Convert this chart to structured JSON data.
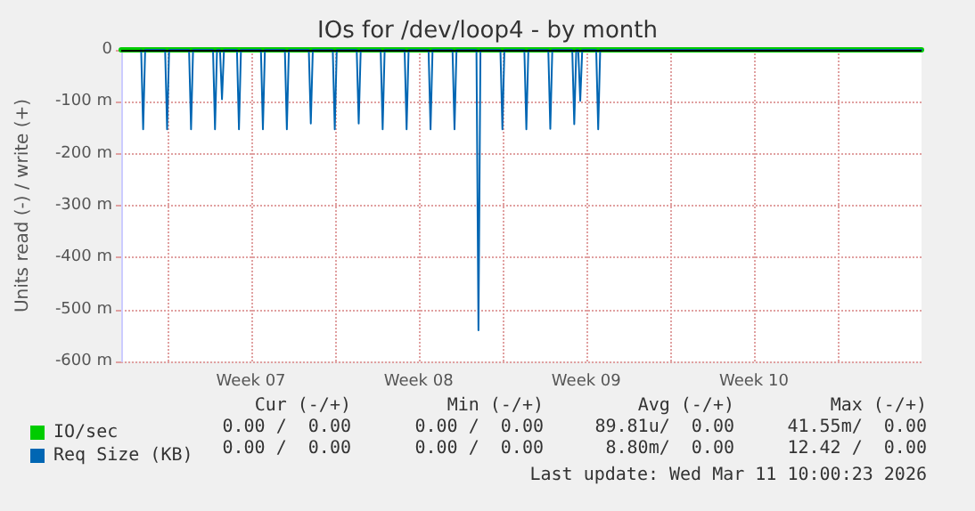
{
  "chart_data": {
    "type": "line",
    "title": "IOs for /dev/loop4 - by month",
    "ylabel": "Units read (-) / write (+)",
    "xlim": [
      "2026-02-07T02:00",
      "2026-03-12T12:00"
    ],
    "xticks": [
      {
        "value": "2026-02-09",
        "label": null
      },
      {
        "value": "2026-02-12T12:00",
        "label": "Week 07"
      },
      {
        "value": "2026-02-16",
        "label": null
      },
      {
        "value": "2026-02-19T12:00",
        "label": "Week 08"
      },
      {
        "value": "2026-02-23",
        "label": null
      },
      {
        "value": "2026-02-26T12:00",
        "label": "Week 09"
      },
      {
        "value": "2026-03-02",
        "label": null
      },
      {
        "value": "2026-03-05T12:00",
        "label": "Week 10"
      },
      {
        "value": "2026-03-09",
        "label": null
      }
    ],
    "ylim": [
      -600,
      0
    ],
    "yticks": [
      0,
      {
        "value": -100,
        "label": "-100 m"
      },
      {
        "value": -200,
        "label": "-200 m"
      },
      {
        "value": -300,
        "label": "-300 m"
      },
      {
        "value": -400,
        "label": "-400 m"
      },
      {
        "value": -500,
        "label": "-500 m"
      },
      {
        "value": -600,
        "label": "-600 m"
      }
    ],
    "grid": true,
    "legend": "bottom left",
    "ref_lines": [
      {
        "axis": "y",
        "value": 0,
        "label": null,
        "color": "#000000"
      }
    ],
    "series": [
      {
        "name": "IO/sec",
        "color": "#00cc00",
        "x": [
          "2026-02-07T02:00",
          "2026-03-12T12:00"
        ],
        "values": [
          0,
          0
        ]
      },
      {
        "name": "Req Size (KB)",
        "color": "#0066b3",
        "x": [
          "2026-02-07T22:00",
          "2026-02-08",
          "2026-02-08T02:00",
          "2026-02-08T22:00",
          "2026-02-09",
          "2026-02-09T02:00",
          "2026-02-09T22:00",
          "2026-02-10",
          "2026-02-10T02:00",
          "2026-02-10T22:00",
          "2026-02-11",
          "2026-02-11T02:00",
          "2026-02-11T05:00",
          "2026-02-11T07:00",
          "2026-02-11T09:00",
          "2026-02-11T22:00",
          "2026-02-12",
          "2026-02-12T02:00",
          "2026-02-12T22:00",
          "2026-02-13",
          "2026-02-13T02:00",
          "2026-02-13T22:00",
          "2026-02-14",
          "2026-02-14T02:00",
          "2026-02-14T22:00",
          "2026-02-15",
          "2026-02-15T02:00",
          "2026-02-15T22:00",
          "2026-02-16",
          "2026-02-16T02:00",
          "2026-02-16T22:00",
          "2026-02-17",
          "2026-02-17T02:00",
          "2026-02-17T22:00",
          "2026-02-18",
          "2026-02-18T02:00",
          "2026-02-18T22:00",
          "2026-02-19",
          "2026-02-19T02:00",
          "2026-02-19T22:00",
          "2026-02-20",
          "2026-02-20T02:00",
          "2026-02-20T22:00",
          "2026-02-21",
          "2026-02-21T02:00",
          "2026-02-21T22:00",
          "2026-02-22",
          "2026-02-22T02:00",
          "2026-02-22T22:00",
          "2026-02-23",
          "2026-02-23T02:00",
          "2026-02-23T22:00",
          "2026-02-24",
          "2026-02-24T02:00",
          "2026-02-24T22:00",
          "2026-02-25",
          "2026-02-25T02:00",
          "2026-02-25T22:00",
          "2026-02-26",
          "2026-02-26T02:00",
          "2026-02-26T04:00",
          "2026-02-26T06:00",
          "2026-02-26T08:00",
          "2026-02-26T22:00",
          "2026-02-27",
          "2026-02-27T02:00",
          "2026-03-12T12:00"
        ],
        "values": [
          0,
          -153,
          0,
          0,
          -153,
          0,
          0,
          -153,
          0,
          0,
          -153,
          0,
          0,
          -95,
          0,
          0,
          -153,
          0,
          0,
          -153,
          0,
          0,
          -153,
          0,
          0,
          -142,
          0,
          0,
          -153,
          0,
          0,
          -142,
          0,
          0,
          -153,
          0,
          0,
          -153,
          0,
          0,
          -153,
          0,
          0,
          -153,
          0,
          0,
          -540,
          0,
          0,
          -153,
          0,
          0,
          -153,
          0,
          0,
          -152,
          0,
          0,
          -143,
          0,
          0,
          -98,
          0,
          0,
          -153,
          0,
          0
        ]
      }
    ],
    "annotations": [
      "Cur (-/+)",
      "Min (-/+)",
      "Avg (-/+)",
      "Max (-/+)",
      "0.00 /  0.00",
      "0.00 /  0.00",
      "89.81u/  0.00",
      "41.55m/  0.00",
      "0.00 /  0.00",
      "0.00 /  0.00",
      "8.80m/  0.00",
      "12.42 /  0.00",
      "Last update: Wed Mar 11 10:00:23 2026"
    ]
  }
}
